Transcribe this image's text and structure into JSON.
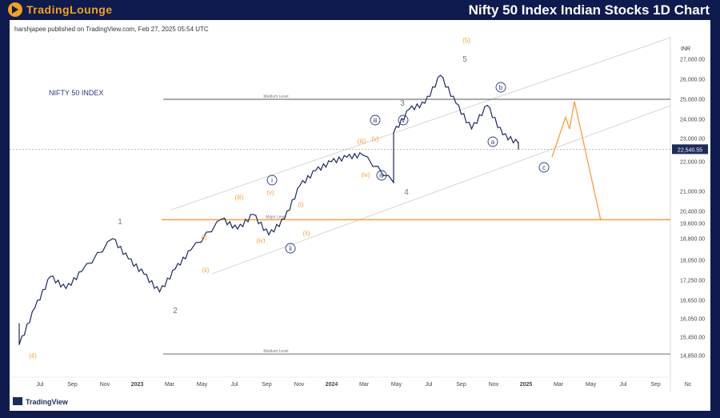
{
  "header": {
    "brand": "TradingLounge",
    "title": "Nifty 50 Index Indian Stocks 1D Chart"
  },
  "publisher_line": "harshjapee published on TradingView.com, Feb 27, 2025 05:54 UTC",
  "footer_brand": "TradingView",
  "chart_data": {
    "type": "line",
    "title": "NIFTY 50 INDEX",
    "currency": "INR",
    "last_price_label": "22,540.55",
    "y_ticks": [
      "27,000.00",
      "26,000.00",
      "25,000.00",
      "24,000.00",
      "23,000.00",
      "22,000.00",
      "21,000.00",
      "20,400.00",
      "19,600.00",
      "18,800.00",
      "18,050.00",
      "17,250.00",
      "16,650.00",
      "16,050.00",
      "15,450.00",
      "14,850.00"
    ],
    "x_ticks": [
      "Jul",
      "Sep",
      "Nov",
      "2023",
      "Mar",
      "May",
      "Jul",
      "Sep",
      "Nov",
      "2024",
      "Mar",
      "May",
      "Jul",
      "Sep",
      "Nov",
      "2025",
      "Mar",
      "May",
      "Jul",
      "Sep",
      "Nc"
    ],
    "levels": [
      {
        "label": "Medium Level",
        "value": 25000
      },
      {
        "label": "Major Level",
        "value": 19850
      },
      {
        "label": "Medium Level",
        "value": 14900
      }
    ],
    "series": [
      {
        "x": [
          "Jun 2022",
          "Jun 2022",
          "Jul 2022",
          "Aug 2022",
          "Sep 2022",
          "Oct 2022",
          "Dec 2022",
          "Jan 2023",
          "Feb 2023",
          "Mar 2023",
          "Apr 2023",
          "May 2023",
          "Jul 2023",
          "Aug 2023",
          "Sep 2023",
          "Oct 2023",
          "Nov 2023",
          "Dec 2023",
          "Jan 2024",
          "Feb 2024",
          "Mar 2024",
          "Apr 2024",
          "Jun 2024",
          "Jun 2024",
          "Jul 2024",
          "Aug 2024",
          "Sep 2024",
          "Oct 2024",
          "Nov 2024",
          "Dec 2024",
          "Jan 2025",
          "Feb 2025",
          "Feb 2025"
        ],
        "values": [
          15900,
          15200,
          16400,
          17400,
          17000,
          17600,
          18800,
          18100,
          17500,
          16900,
          17700,
          18400,
          19900,
          19300,
          20200,
          19000,
          19900,
          21200,
          21700,
          22000,
          22200,
          22300,
          21300,
          23300,
          24500,
          24800,
          26200,
          24800,
          23500,
          24700,
          23200,
          22800,
          22540
        ]
      }
    ],
    "wave_labels": [
      {
        "text": "(4)"
      },
      {
        "text": "1"
      },
      {
        "text": "2"
      },
      {
        "text": "(i)"
      },
      {
        "text": "(ii)"
      },
      {
        "text": "(iii)"
      },
      {
        "text": "(iv)"
      },
      {
        "text": "(v)"
      },
      {
        "text": "i"
      },
      {
        "text": "ii"
      },
      {
        "text": "(i)"
      },
      {
        "text": "(ii)"
      },
      {
        "text": "(iii)"
      },
      {
        "text": "(iv)"
      },
      {
        "text": "(v)"
      },
      {
        "text": "iii"
      },
      {
        "text": "iv"
      },
      {
        "text": "v"
      },
      {
        "text": "3"
      },
      {
        "text": "4"
      },
      {
        "text": "5"
      },
      {
        "text": "(5)"
      },
      {
        "text": "a"
      },
      {
        "text": "b"
      },
      {
        "text": "c"
      }
    ],
    "projection": {
      "x": [
        "Feb 2025",
        "Mar 2025",
        "Apr 2025",
        "Apr 2025",
        "Jun 2025"
      ],
      "values": [
        22200,
        24100,
        23500,
        24900,
        19800
      ]
    },
    "colors": {
      "price": "#1d2a5c",
      "orange": "#f5a03a",
      "navy_label": "#2a3a7a",
      "grey_label": "#777777",
      "level_line": "#555555",
      "channel": "#cccccc"
    }
  }
}
